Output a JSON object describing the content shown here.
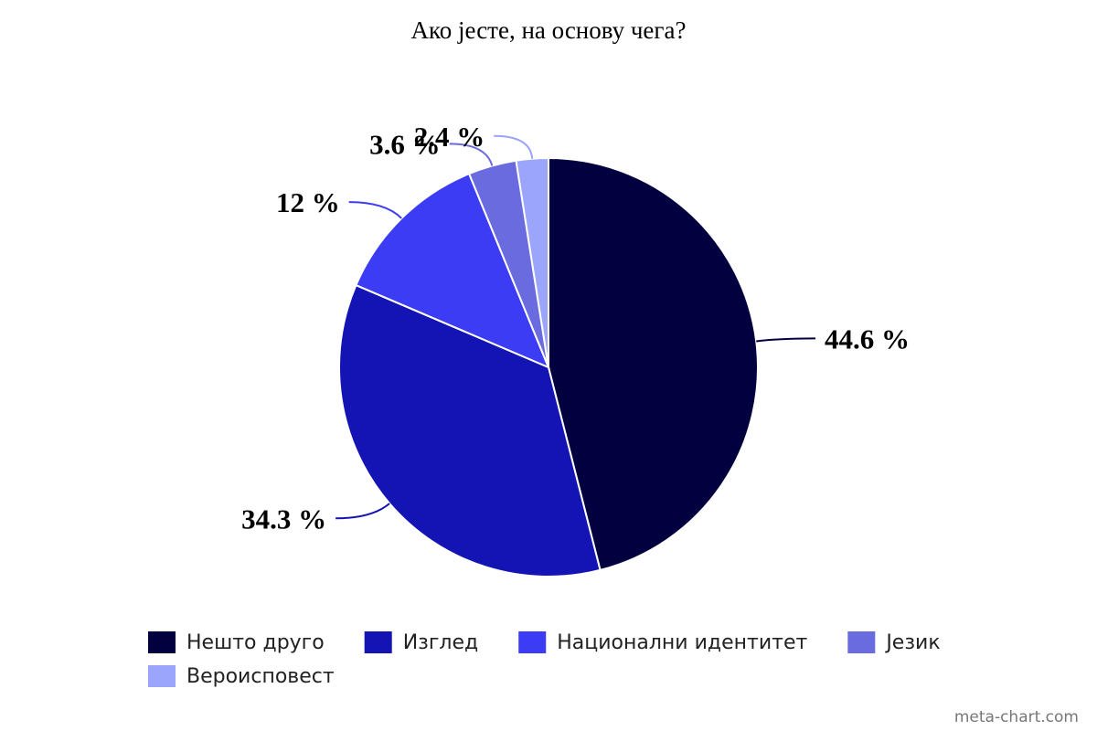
{
  "chart_data": {
    "type": "pie",
    "title": "Ако јесте, на основу чега?",
    "categories": [
      "Нешто друго",
      "Изглед",
      "Национални идентитет",
      "Језик",
      "Вероисповест"
    ],
    "values": [
      44.6,
      34.3,
      12,
      3.6,
      2.4
    ],
    "value_labels": [
      "44.6 %",
      "34.3 %",
      "12 %",
      "3.6 %",
      "2.4 %"
    ],
    "colors": [
      "#03003f",
      "#1414b4",
      "#3c3cf5",
      "#6b6be0",
      "#9aa5fb"
    ],
    "watermark": "meta-chart.com"
  }
}
